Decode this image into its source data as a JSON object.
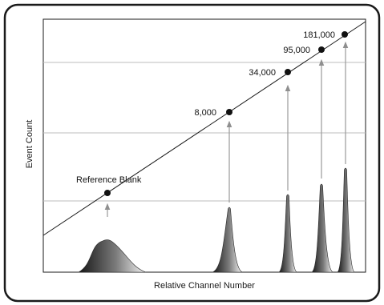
{
  "chart_data": {
    "type": "histogram-annotated",
    "xlabel": "Relative Channel Number",
    "ylabel": "Event Count",
    "grid": true,
    "x_scale": "log",
    "points": [
      {
        "label": "Reference Blank"
      },
      {
        "label": "8,000"
      },
      {
        "label": "34,000"
      },
      {
        "label": "95,000"
      },
      {
        "label": "181,000"
      }
    ],
    "colors": {
      "frame": "#1a1a1a",
      "grid": "#bdbdbd",
      "arrow": "#9a9a9a",
      "line": "#1a1a1a",
      "peak_dark": "#1e1e1e",
      "peak_light": "#f2f2f2"
    }
  }
}
